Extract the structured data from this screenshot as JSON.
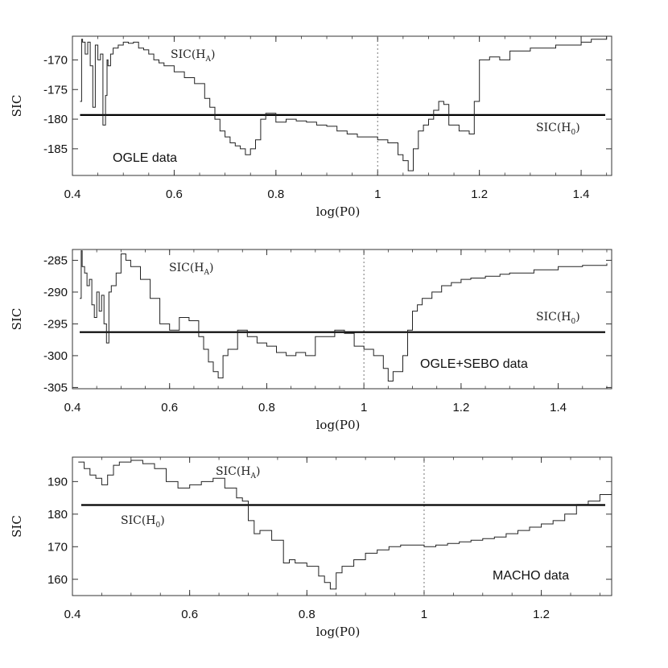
{
  "chart_data": [
    {
      "type": "line",
      "xlabel": "log(P0)",
      "ylabel": "SIC",
      "xlim": [
        0.4,
        1.46
      ],
      "ylim": [
        -189.5,
        -166
      ],
      "invert_y": true,
      "xticks": [
        0.4,
        0.6,
        0.8,
        1.0,
        1.2,
        1.4
      ],
      "xtick_labels": [
        "0.4",
        "0.6",
        "0.8",
        "1",
        "1.2",
        "1.4"
      ],
      "yticks": [
        -170,
        -175,
        -180,
        -185
      ],
      "ytick_labels": [
        "-170",
        "-175",
        "-180",
        "-185"
      ],
      "dataset_label": "OGLE data",
      "dataset_label_pos": "bottom-left",
      "ha_label": "SIC(H",
      "ha_sub": "A",
      "h0_label": "SIC(H",
      "h0_sub": "0",
      "h0_value": -179.3,
      "dotted_x": 1.0,
      "series": [
        {
          "name": "SIC(HA)",
          "x": [
            0.415,
            0.418,
            0.42,
            0.425,
            0.43,
            0.435,
            0.44,
            0.445,
            0.45,
            0.455,
            0.46,
            0.465,
            0.468,
            0.47,
            0.475,
            0.48,
            0.49,
            0.5,
            0.51,
            0.52,
            0.53,
            0.54,
            0.55,
            0.56,
            0.57,
            0.58,
            0.6,
            0.62,
            0.64,
            0.66,
            0.67,
            0.68,
            0.69,
            0.7,
            0.71,
            0.72,
            0.73,
            0.74,
            0.75,
            0.76,
            0.77,
            0.78,
            0.8,
            0.82,
            0.84,
            0.86,
            0.88,
            0.9,
            0.92,
            0.94,
            0.96,
            0.98,
            1.0,
            1.02,
            1.04,
            1.05,
            1.06,
            1.07,
            1.08,
            1.09,
            1.1,
            1.11,
            1.12,
            1.13,
            1.14,
            1.16,
            1.18,
            1.19,
            1.2,
            1.22,
            1.24,
            1.26,
            1.28,
            1.3,
            1.32,
            1.35,
            1.38,
            1.4,
            1.42,
            1.45
          ],
          "y": [
            -177,
            -166.5,
            -167,
            -169,
            -167,
            -171,
            -178,
            -167.5,
            -170,
            -169,
            -181,
            -176,
            -170,
            -171,
            -169,
            -168,
            -167.5,
            -167,
            -167.2,
            -167,
            -168,
            -168.3,
            -169,
            -170,
            -170.5,
            -171,
            -172,
            -173,
            -174,
            -176.5,
            -178,
            -180,
            -182,
            -183,
            -184,
            -184.5,
            -185,
            -186,
            -185,
            -183.5,
            -180,
            -179,
            -180.5,
            -180,
            -180.3,
            -180.5,
            -181,
            -181.2,
            -182,
            -182.5,
            -183,
            -183,
            -183.5,
            -184,
            -186,
            -187,
            -188.7,
            -185,
            -182,
            -181,
            -180,
            -178.5,
            -177,
            -177.5,
            -181,
            -182,
            -182.5,
            -177,
            -170,
            -169.5,
            -170,
            -168.5,
            -168.5,
            -168,
            -168,
            -167.5,
            -167.5,
            -167,
            -166.5,
            -166
          ]
        }
      ]
    },
    {
      "type": "line",
      "xlabel": "log(P0)",
      "ylabel": "SIC",
      "xlim": [
        0.4,
        1.51
      ],
      "ylim": [
        -305.2,
        -283.3
      ],
      "invert_y": true,
      "xticks": [
        0.4,
        0.6,
        0.8,
        1.0,
        1.2,
        1.4
      ],
      "xtick_labels": [
        "0.4",
        "0.6",
        "0.8",
        "1",
        "1.2",
        "1.4"
      ],
      "yticks": [
        -285,
        -290,
        -295,
        -300,
        -305
      ],
      "ytick_labels": [
        "-285",
        "-290",
        "-295",
        "-300",
        "-305"
      ],
      "dataset_label": "OGLE+SEBO data",
      "dataset_label_pos": "bottom-center",
      "ha_label": "SIC(H",
      "ha_sub": "A",
      "h0_label": "SIC(H",
      "h0_sub": "0",
      "h0_value": -296.3,
      "dotted_x": 1.0,
      "series": [
        {
          "name": "SIC(HA)",
          "x": [
            0.415,
            0.418,
            0.42,
            0.425,
            0.43,
            0.435,
            0.44,
            0.445,
            0.45,
            0.455,
            0.46,
            0.465,
            0.47,
            0.475,
            0.48,
            0.49,
            0.5,
            0.51,
            0.52,
            0.54,
            0.56,
            0.58,
            0.6,
            0.62,
            0.64,
            0.66,
            0.67,
            0.68,
            0.69,
            0.7,
            0.71,
            0.72,
            0.74,
            0.76,
            0.78,
            0.8,
            0.82,
            0.84,
            0.86,
            0.88,
            0.9,
            0.92,
            0.94,
            0.96,
            0.98,
            1.0,
            1.02,
            1.04,
            1.05,
            1.06,
            1.08,
            1.09,
            1.1,
            1.11,
            1.12,
            1.14,
            1.16,
            1.18,
            1.2,
            1.22,
            1.25,
            1.28,
            1.3,
            1.35,
            1.4,
            1.45,
            1.5
          ],
          "y": [
            -291,
            -283.5,
            -286,
            -287,
            -289,
            -288,
            -292,
            -294,
            -290,
            -293,
            -290.5,
            -295,
            -298,
            -290,
            -289,
            -287,
            -284,
            -285,
            -286,
            -288,
            -291,
            -295,
            -296,
            -294,
            -294.5,
            -297,
            -299,
            -301,
            -302.5,
            -303.5,
            -300,
            -299,
            -296,
            -297,
            -298,
            -298.5,
            -299.5,
            -300,
            -299.5,
            -300,
            -297,
            -297,
            -296,
            -296.5,
            -298.5,
            -299,
            -300,
            -302,
            -304,
            -302.5,
            -300,
            -296,
            -293,
            -292,
            -291,
            -290,
            -289,
            -288.5,
            -288,
            -287.8,
            -287.5,
            -287.2,
            -287,
            -286.5,
            -286,
            -285.8,
            -285.5
          ]
        }
      ]
    },
    {
      "type": "line",
      "xlabel": "log(P0)",
      "ylabel": "SIC",
      "xlim": [
        0.4,
        1.32
      ],
      "ylim": [
        155,
        197.5
      ],
      "invert_y": false,
      "xticks": [
        0.4,
        0.6,
        0.8,
        1.0,
        1.2
      ],
      "xtick_labels": [
        "0.4",
        "0.6",
        "0.8",
        "1",
        "1.2"
      ],
      "yticks": [
        160,
        170,
        180,
        190
      ],
      "ytick_labels": [
        "160",
        "170",
        "180",
        "190"
      ],
      "dataset_label": "MACHO data",
      "dataset_label_pos": "bottom-right",
      "ha_label": "SIC(H",
      "ha_sub": "A",
      "h0_label": "SIC(H",
      "h0_sub": "0",
      "h0_value": 182.8,
      "dotted_x": 1.0,
      "series": [
        {
          "name": "SIC(HA)",
          "x": [
            0.41,
            0.42,
            0.43,
            0.44,
            0.45,
            0.46,
            0.47,
            0.48,
            0.5,
            0.52,
            0.54,
            0.56,
            0.58,
            0.6,
            0.62,
            0.64,
            0.66,
            0.68,
            0.69,
            0.7,
            0.71,
            0.72,
            0.74,
            0.76,
            0.77,
            0.78,
            0.8,
            0.82,
            0.83,
            0.84,
            0.85,
            0.86,
            0.88,
            0.9,
            0.92,
            0.94,
            0.96,
            0.98,
            1.0,
            1.02,
            1.04,
            1.06,
            1.08,
            1.1,
            1.12,
            1.14,
            1.16,
            1.18,
            1.2,
            1.22,
            1.24,
            1.26,
            1.28,
            1.3,
            1.32
          ],
          "y": [
            196,
            194,
            192,
            191,
            189,
            192,
            195,
            196,
            196.5,
            195.5,
            194,
            190,
            188,
            189,
            190,
            191,
            188,
            185,
            184,
            178,
            174,
            175,
            172,
            165,
            166,
            165,
            164,
            161,
            159,
            157,
            162,
            164,
            166,
            168,
            169,
            170,
            170.5,
            170.5,
            170,
            170.5,
            171,
            171.5,
            172,
            172.5,
            173,
            174,
            175,
            176,
            177,
            178,
            180,
            183,
            184,
            186,
            187
          ]
        }
      ]
    }
  ]
}
